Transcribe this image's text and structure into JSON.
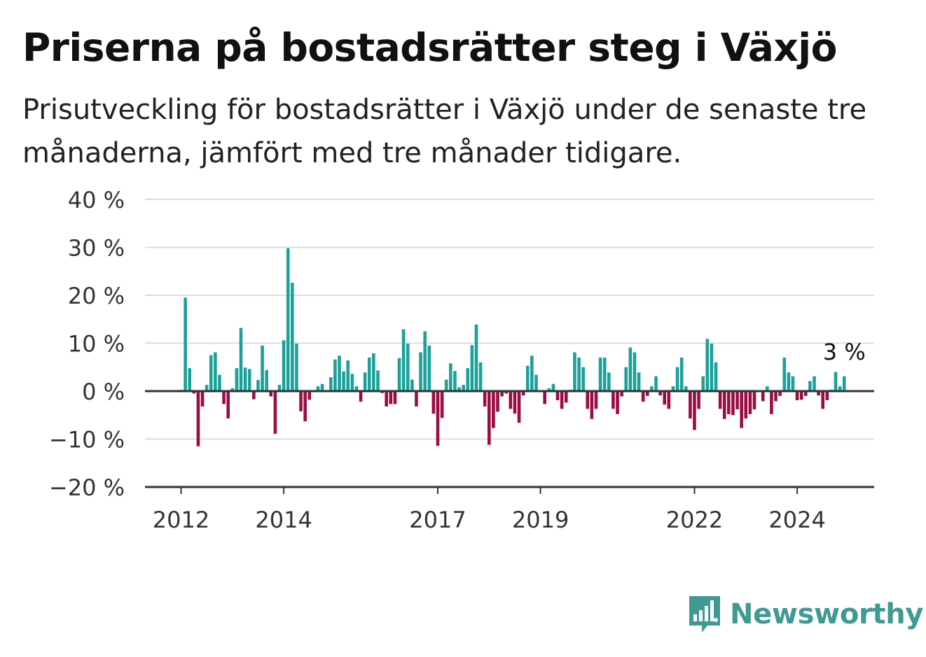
{
  "title": "Priserna på bostadsrätter steg i Växjö",
  "subtitle": "Prisutveckling för bostadsrätter i Växjö under de senaste tre månaderna, jämfört med tre månader tidigare.",
  "brand": {
    "name": "Newsworthy",
    "icon": "newsworthy-logo-icon"
  },
  "colors": {
    "positive": "#1aa199",
    "negative": "#990d43",
    "grid": "#dddddd",
    "axis": "#333333",
    "brand": "#3e9a92"
  },
  "chart_data": {
    "type": "bar",
    "unit": " %",
    "ylim": [
      -20,
      40
    ],
    "yticks": [
      40,
      30,
      20,
      10,
      0,
      -10,
      -20
    ],
    "ytick_labels": [
      "40 %",
      "30 %",
      "20 %",
      "10 %",
      "0 %",
      "−10 %",
      "−20 %"
    ],
    "grid": true,
    "x_start": 2012.0,
    "x_step": 0.08333,
    "xticks": [
      2012,
      2014,
      2017,
      2019,
      2022,
      2024
    ],
    "xtick_labels": [
      "2012",
      "2014",
      "2017",
      "2019",
      "2022",
      "2024"
    ],
    "last_value_label": "3 %",
    "values": [
      0.3,
      19.5,
      4.8,
      -0.5,
      -11.5,
      -3.2,
      1.3,
      7.5,
      8.1,
      3.4,
      -2.7,
      -5.7,
      0.6,
      4.8,
      13.2,
      4.9,
      4.6,
      -1.7,
      2.3,
      9.5,
      4.4,
      -1.1,
      -8.9,
      1.3,
      10.6,
      29.8,
      22.6,
      9.9,
      -4.2,
      -6.3,
      -1.8,
      0.2,
      1.0,
      1.5,
      0.2,
      2.9,
      6.6,
      7.4,
      4.1,
      6.4,
      3.6,
      1.0,
      -2.2,
      3.9,
      7.0,
      7.9,
      4.3,
      -0.4,
      -3.2,
      -2.7,
      -2.7,
      6.9,
      12.9,
      9.9,
      2.4,
      -3.2,
      8.1,
      12.5,
      9.5,
      -4.7,
      -11.4,
      -5.6,
      2.4,
      5.8,
      4.2,
      0.8,
      1.3,
      4.8,
      9.6,
      13.9,
      6.0,
      -3.2,
      -11.2,
      -7.7,
      -4.3,
      -1.1,
      -0.5,
      -3.7,
      -4.7,
      -6.6,
      -0.9,
      5.3,
      7.4,
      3.4,
      -0.2,
      -2.7,
      0.6,
      1.5,
      -1.9,
      -3.7,
      -2.4,
      0.3,
      8.1,
      7.0,
      5.0,
      -3.7,
      -5.8,
      -3.7,
      7.0,
      7.0,
      3.9,
      -3.7,
      -4.8,
      -1.1,
      5.0,
      9.1,
      8.1,
      3.9,
      -2.2,
      -1.0,
      1.0,
      3.1,
      -0.9,
      -2.8,
      -3.7,
      1.0,
      5.0,
      7.0,
      1.0,
      -5.7,
      -8.1,
      -3.7,
      3.1,
      10.9,
      9.9,
      6.0,
      -3.7,
      -5.8,
      -4.8,
      -5.0,
      -3.8,
      -7.7,
      -5.7,
      -4.8,
      -3.8,
      0.1,
      -2.1,
      1.0,
      -4.8,
      -2.1,
      -1.0,
      7.0,
      3.9,
      3.1,
      -1.9,
      -1.8,
      -1.0,
      2.1,
      3.1,
      -0.9,
      -3.7,
      -1.9,
      0.3,
      4.0,
      1.0,
      3.1
    ]
  }
}
